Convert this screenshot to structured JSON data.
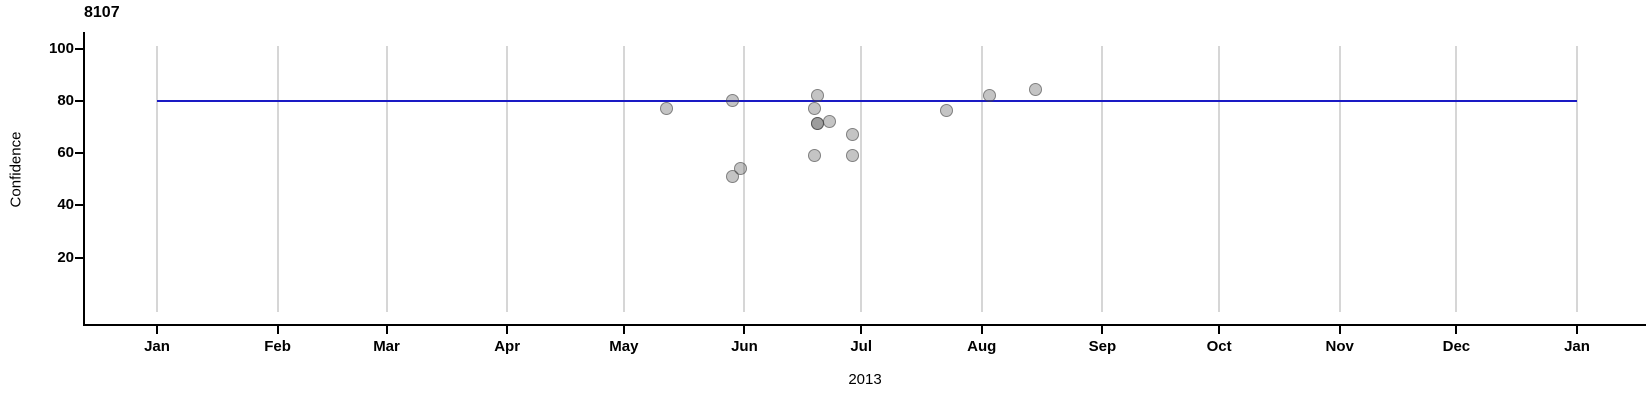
{
  "title": "8107",
  "chart_data": {
    "type": "scatter",
    "title": "8107",
    "xlabel": "2013",
    "ylabel": "Confidence",
    "x_months": [
      "Jan",
      "Feb",
      "Mar",
      "Apr",
      "May",
      "Jun",
      "Jul",
      "Aug",
      "Sep",
      "Oct",
      "Nov",
      "Dec",
      "Jan"
    ],
    "x_range": [
      "2013-01-01",
      "2014-01-01"
    ],
    "y_ticks": [
      20,
      40,
      60,
      80,
      100
    ],
    "ylim": [
      0,
      105
    ],
    "grid": "vertical-monthly-gridlines",
    "legend": "none",
    "gridline_color": "#d6d6d6",
    "point_fill_color": "#c4c4c4",
    "point_stroke_color": "#9a9a9a",
    "overlap_point_color": "#8e8e8e",
    "reference_line": {
      "value": 80,
      "color": "#1a1ac4"
    },
    "points": [
      {
        "date": "2013-05-12",
        "value": 77
      },
      {
        "date": "2013-05-29",
        "value": 80
      },
      {
        "date": "2013-05-29",
        "value": 51
      },
      {
        "date": "2013-05-31",
        "value": 54
      },
      {
        "date": "2013-06-19",
        "value": 77
      },
      {
        "date": "2013-06-19",
        "value": 59
      },
      {
        "date": "2013-06-20",
        "value": 82
      },
      {
        "date": "2013-06-20",
        "value": 71
      },
      {
        "date": "2013-06-20",
        "value": 71
      },
      {
        "date": "2013-06-23",
        "value": 72
      },
      {
        "date": "2013-06-29",
        "value": 67
      },
      {
        "date": "2013-06-29",
        "value": 59
      },
      {
        "date": "2013-07-23",
        "value": 76
      },
      {
        "date": "2013-08-03",
        "value": 82
      },
      {
        "date": "2013-08-15",
        "value": 84
      }
    ]
  }
}
